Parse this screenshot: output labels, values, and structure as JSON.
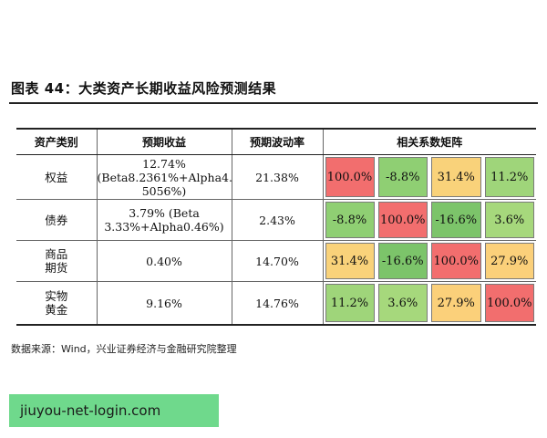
{
  "title": "图表 44：大类资产长期收益风险预测结果",
  "headers": {
    "category": "资产类别",
    "expected_return": "预期收益",
    "expected_volatility": "预期波动率",
    "correlation_matrix": "相关系数矩阵"
  },
  "rows": [
    {
      "category": "权益",
      "expected_return": "12.74%\n(Beta8.2361%+Alpha4.\n5056%)",
      "volatility": "21.38%",
      "corr": [
        "100.0%",
        "-8.8%",
        "31.4%",
        "11.2%"
      ]
    },
    {
      "category": "债券",
      "expected_return": "3.79% (Beta\n3.33%+Alpha0.46%)",
      "volatility": "2.43%",
      "corr": [
        "-8.8%",
        "100.0%",
        "-16.6%",
        "3.6%"
      ]
    },
    {
      "category": "商品\n期货",
      "expected_return": "0.40%",
      "volatility": "14.70%",
      "corr": [
        "31.4%",
        "-16.6%",
        "100.0%",
        "27.9%"
      ]
    },
    {
      "category": "实物\n黄金",
      "expected_return": "9.16%",
      "volatility": "14.76%",
      "corr": [
        "11.2%",
        "3.6%",
        "27.9%",
        "100.0%"
      ]
    }
  ],
  "corr_colors": [
    [
      "#f26e6e",
      "#8fcf73",
      "#f9d27a",
      "#9fd57a"
    ],
    [
      "#8fcf73",
      "#f26e6e",
      "#7cc46a",
      "#a6d87c"
    ],
    [
      "#f9d27a",
      "#7cc46a",
      "#f26e6e",
      "#fbd07a"
    ],
    [
      "#9fd57a",
      "#a6d87c",
      "#fbd07a",
      "#f26e6e"
    ]
  ],
  "source": "数据来源：Wind，兴业证券经济与金融研究院整理",
  "watermark": "jiuyou-net-login.com"
}
